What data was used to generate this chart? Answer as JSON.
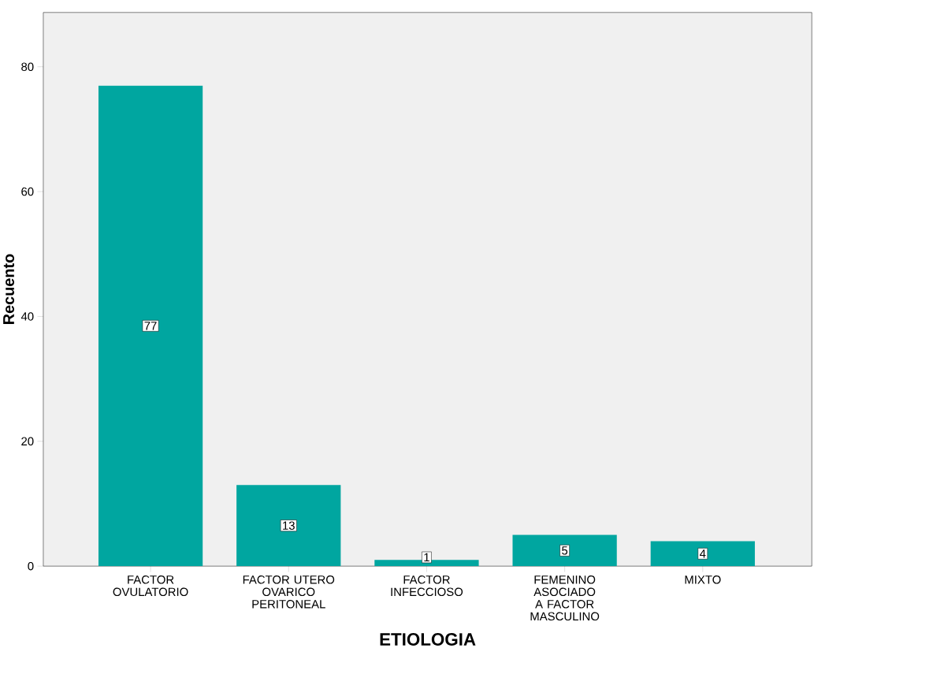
{
  "chart_data": {
    "type": "bar",
    "xlabel": "ETIOLOGIA",
    "ylabel": "Recuento",
    "categories": [
      "FACTOR OVULATORIO",
      "FACTOR UTERO OVARICO PERITONEAL",
      "FACTOR INFECCIOSO",
      "FEMENINO ASOCIADO A FACTOR MASCULINO",
      "MIXTO"
    ],
    "values": [
      77,
      13,
      1,
      5,
      4
    ],
    "color": "#00a6a0",
    "ylim": [
      0,
      88.7
    ],
    "yticks": [
      0,
      20,
      40,
      60,
      80
    ],
    "grid": false,
    "data_labels": true
  }
}
